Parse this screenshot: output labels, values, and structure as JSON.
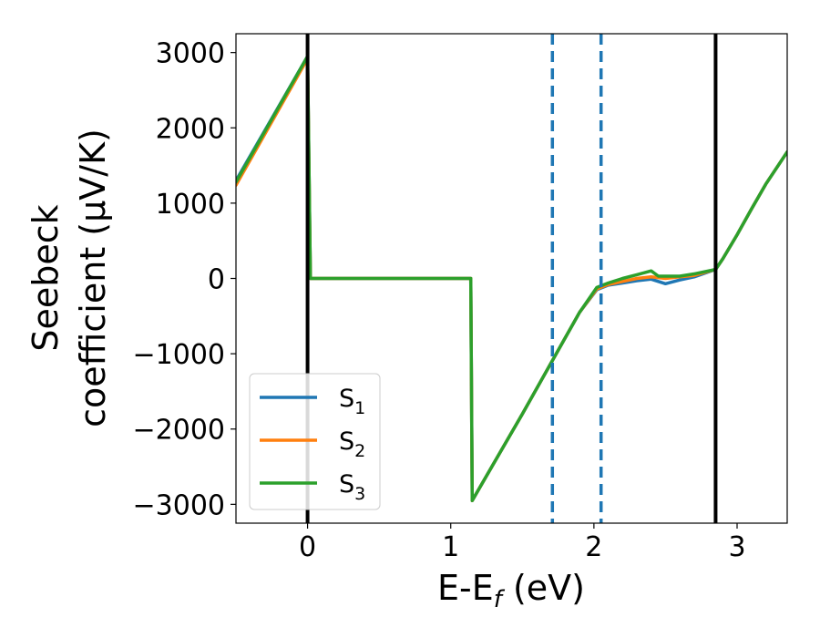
{
  "chart_data": {
    "type": "line",
    "xlabel_base": "E-E",
    "xlabel_sub": "f",
    "xlabel_unit": " (eV)",
    "ylabel_line1": "Seebeck",
    "ylabel_line2": "coefficient  (μV/K)",
    "xlim": [
      -0.5,
      3.35
    ],
    "ylim": [
      -3250,
      3250
    ],
    "x_ticks": [
      0,
      1,
      2,
      3
    ],
    "y_ticks": [
      -3000,
      -2000,
      -1000,
      0,
      1000,
      2000,
      3000
    ],
    "y_tick_labels": [
      "−3000",
      "−2000",
      "−1000",
      "0",
      "1000",
      "2000",
      "3000"
    ],
    "grid": false,
    "legend_position": "lower-left",
    "vertical_lines": [
      {
        "x": 0.0,
        "style": "solid",
        "color": "#000000"
      },
      {
        "x": 1.71,
        "style": "dashed",
        "color": "#1f77b4"
      },
      {
        "x": 2.05,
        "style": "dashed",
        "color": "#1f77b4"
      },
      {
        "x": 2.85,
        "style": "solid",
        "color": "#000000"
      }
    ],
    "series": [
      {
        "name_base": "S",
        "name_sub": "1",
        "color": "#1f77b4",
        "x": [
          -0.5,
          0.0,
          0.02,
          1.14,
          1.15,
          1.5,
          1.9,
          2.02,
          2.1,
          2.2,
          2.3,
          2.4,
          2.5,
          2.6,
          2.7,
          2.85,
          2.9,
          3.0,
          3.1,
          3.2,
          3.35
        ],
        "y": [
          1300,
          2950,
          0,
          0,
          -2950,
          -1800,
          -450,
          -150,
          -90,
          -60,
          -30,
          -10,
          -70,
          -20,
          20,
          120,
          260,
          580,
          920,
          1250,
          1680
        ]
      },
      {
        "name_base": "S",
        "name_sub": "2",
        "color": "#ff7f0e",
        "x": [
          -0.5,
          0.0,
          0.02,
          1.14,
          1.15,
          1.5,
          1.9,
          2.02,
          2.1,
          2.2,
          2.3,
          2.4,
          2.5,
          2.6,
          2.7,
          2.85,
          2.9,
          3.0,
          3.1,
          3.2,
          3.35
        ],
        "y": [
          1240,
          2920,
          0,
          0,
          -2950,
          -1800,
          -450,
          -140,
          -80,
          -40,
          0,
          20,
          0,
          20,
          40,
          120,
          260,
          580,
          920,
          1250,
          1680
        ]
      },
      {
        "name_base": "S",
        "name_sub": "3",
        "color": "#2ca02c",
        "x": [
          -0.5,
          0.0,
          0.02,
          1.14,
          1.15,
          1.5,
          1.9,
          2.02,
          2.1,
          2.2,
          2.3,
          2.4,
          2.45,
          2.5,
          2.6,
          2.7,
          2.85,
          2.9,
          3.0,
          3.1,
          3.2,
          3.35
        ],
        "y": [
          1280,
          2950,
          0,
          0,
          -2950,
          -1800,
          -450,
          -120,
          -60,
          0,
          50,
          100,
          30,
          30,
          30,
          60,
          120,
          260,
          580,
          920,
          1250,
          1680
        ]
      }
    ]
  }
}
